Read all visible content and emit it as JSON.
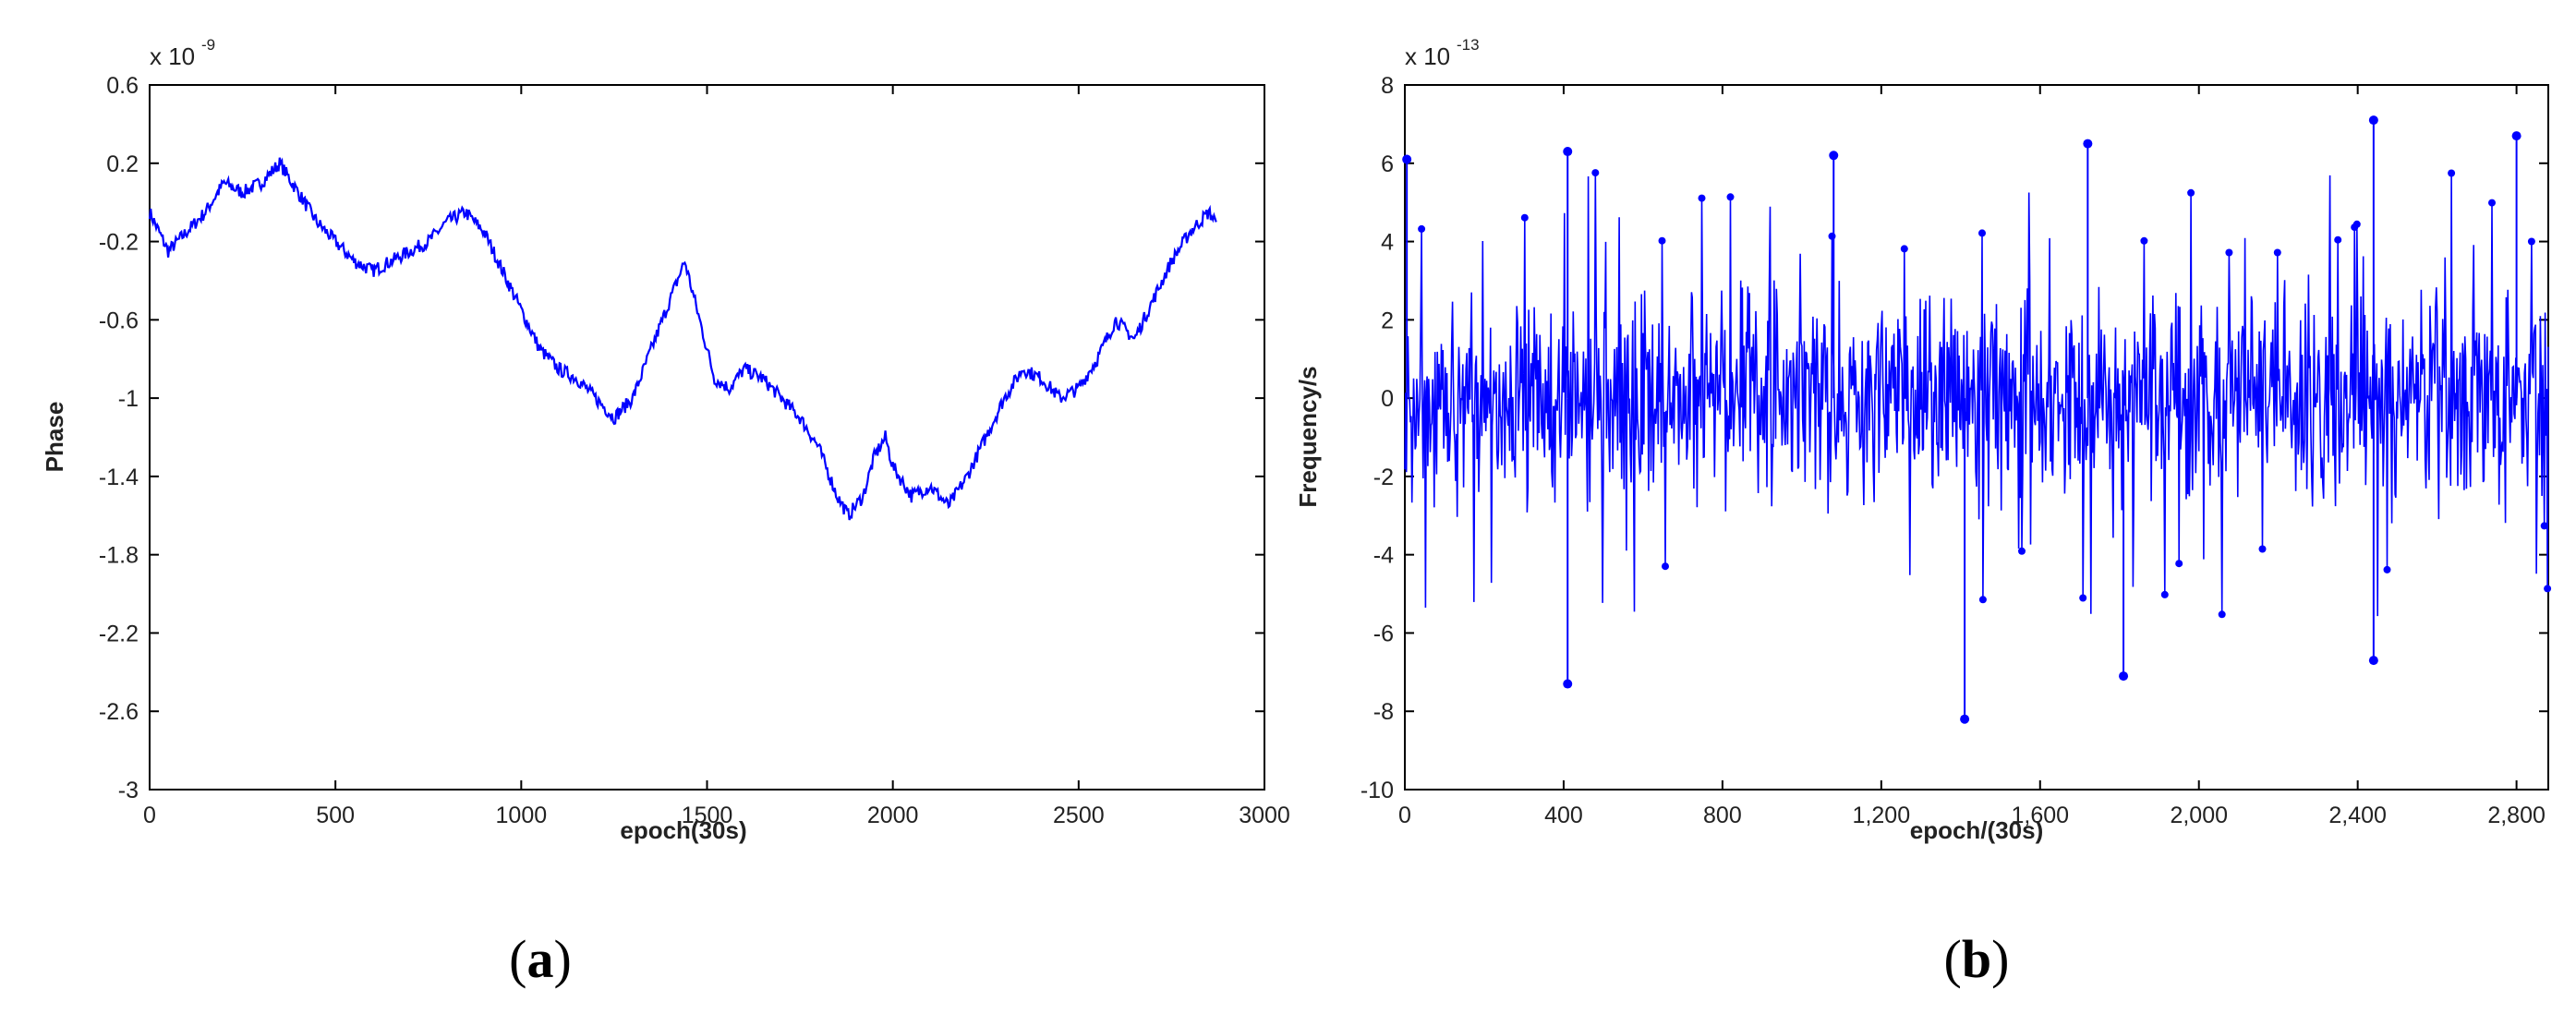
{
  "chart_data": [
    {
      "type": "line",
      "panel_label": "a",
      "xlabel": "epoch(30s)",
      "ylabel": "Phase",
      "y_exponent": "x 10",
      "y_exponent_power": "-9",
      "xlim": [
        0,
        3000
      ],
      "ylim": [
        -3,
        0.6
      ],
      "xticks": [
        0,
        500,
        1000,
        1500,
        2000,
        2500,
        3000
      ],
      "xtick_labels": [
        "0",
        "500",
        "1000",
        "1500",
        "2000",
        "2500",
        "3000"
      ],
      "yticks": [
        0.6,
        0.2,
        -0.2,
        -0.6,
        -1,
        -1.4,
        -1.8,
        -2.2,
        -2.6,
        -3
      ],
      "ytick_labels": [
        "0.6",
        "0.2",
        "-0.2",
        "-0.6",
        "-1",
        "-1.4",
        "-1.8",
        "-2.2",
        "-2.6",
        "-3"
      ],
      "grid": false,
      "color": "#0000ff",
      "series": [
        {
          "x": [
            0,
            50,
            100,
            150,
            200,
            250,
            300,
            350,
            400,
            450,
            500,
            550,
            600,
            650,
            700,
            750,
            800,
            850,
            900,
            950,
            1000,
            1050,
            1100,
            1150,
            1200,
            1250,
            1300,
            1350,
            1400,
            1440,
            1480,
            1520,
            1560,
            1600,
            1650,
            1700,
            1750,
            1800,
            1850,
            1880,
            1920,
            1950,
            1980,
            2000,
            2050,
            2100,
            2150,
            2200,
            2250,
            2300,
            2350,
            2400,
            2450,
            2500,
            2550,
            2600,
            2650,
            2700,
            2750,
            2800,
            2850,
            2870
          ],
          "y": [
            -0.05,
            -0.25,
            -0.15,
            -0.05,
            0.1,
            0.05,
            0.1,
            0.2,
            0.05,
            -0.1,
            -0.2,
            -0.3,
            -0.35,
            -0.3,
            -0.25,
            -0.2,
            -0.1,
            -0.05,
            -0.15,
            -0.35,
            -0.55,
            -0.75,
            -0.85,
            -0.9,
            -1.0,
            -1.1,
            -1.0,
            -0.75,
            -0.5,
            -0.3,
            -0.6,
            -0.9,
            -0.95,
            -0.85,
            -0.9,
            -1.0,
            -1.1,
            -1.25,
            -1.5,
            -1.6,
            -1.5,
            -1.3,
            -1.2,
            -1.35,
            -1.5,
            -1.45,
            -1.55,
            -1.4,
            -1.2,
            -1.0,
            -0.85,
            -0.9,
            -1.0,
            -0.95,
            -0.8,
            -0.6,
            -0.7,
            -0.5,
            -0.3,
            -0.15,
            -0.05,
            -0.1
          ]
        }
      ]
    },
    {
      "type": "line",
      "panel_label": "b",
      "xlabel": "epoch/(30s)",
      "ylabel": "Frequency/s",
      "y_exponent": "x 10",
      "y_exponent_power": "-13",
      "xlim": [
        0,
        2880
      ],
      "ylim": [
        -10,
        8
      ],
      "xticks": [
        0,
        400,
        800,
        1200,
        1600,
        2000,
        2400,
        2800
      ],
      "xtick_labels": [
        "0",
        "400",
        "800",
        "1,200",
        "1,600",
        "2,000",
        "2,400",
        "2,800"
      ],
      "yticks": [
        8,
        6,
        4,
        2,
        0,
        -2,
        -4,
        -6,
        -8,
        -10
      ],
      "ytick_labels": [
        "8",
        "6",
        "4",
        "2",
        "0",
        "-2",
        "-4",
        "-6",
        "-8",
        "-10"
      ],
      "grid": false,
      "color": "#0000ff",
      "markers": true,
      "noise_range": [
        -8.2,
        7.1
      ],
      "peaks": [
        {
          "x": 5,
          "y": 6.1
        },
        {
          "x": 410,
          "y": 6.3
        },
        {
          "x": 410,
          "y": -7.3
        },
        {
          "x": 1080,
          "y": 6.2
        },
        {
          "x": 1410,
          "y": -8.2
        },
        {
          "x": 1720,
          "y": 6.5
        },
        {
          "x": 1810,
          "y": -7.1
        },
        {
          "x": 2440,
          "y": 7.1
        },
        {
          "x": 2440,
          "y": -6.7
        },
        {
          "x": 2800,
          "y": 6.7
        }
      ]
    }
  ]
}
